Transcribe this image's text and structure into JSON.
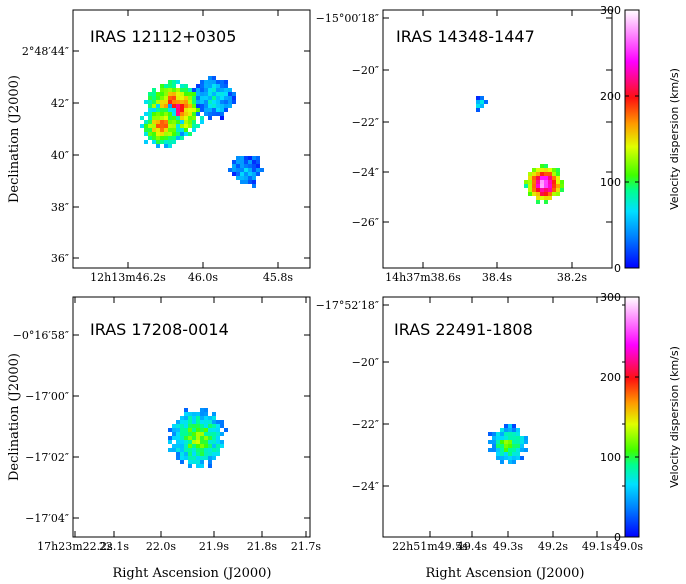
{
  "figure": {
    "colorbar_label": "Velocity dispersion (km/s)",
    "colorbar_ticks": [
      0,
      100,
      200,
      300
    ],
    "colorbar_range": [
      0,
      300
    ],
    "x_axis_label": "Right Ascension (J2000)",
    "y_axis_label": "Declination (J2000)"
  },
  "chart_data": [
    {
      "type": "heatmap",
      "title": "IRAS 12112+0305",
      "x_ticks": [
        "12h13m46.2s",
        "46.0s",
        "45.8s"
      ],
      "y_ticks": [
        "2°48′44″",
        "42″",
        "40″",
        "38″",
        "36″"
      ],
      "xlabel": "",
      "ylabel": "Declination (J2000)",
      "colorbar": false,
      "clumps": [
        {
          "ra_tick": 0.6,
          "dec": 41.8,
          "size": 7,
          "peak": 230
        },
        {
          "ra_tick": 0.4,
          "dec": 41.2,
          "size": 5,
          "peak": 190
        },
        {
          "ra_tick": 1.1,
          "dec": 42.2,
          "size": 5,
          "peak": 80
        },
        {
          "ra_tick": 1.55,
          "dec": 39.5,
          "size": 4,
          "peak": 60
        }
      ]
    },
    {
      "type": "heatmap",
      "title": "IRAS 14348-1447",
      "x_ticks": [
        "14h37m38.6s",
        "38.4s",
        "38.2s"
      ],
      "y_ticks": [
        "−15°00′18″",
        "−20″",
        "−22″",
        "−24″",
        "−26″"
      ],
      "xlabel": "",
      "ylabel": "",
      "colorbar": true,
      "clumps": [
        {
          "ra_tick": 0.75,
          "dec": -21.3,
          "size": 1.5,
          "peak": 90
        },
        {
          "ra_tick": 1.6,
          "dec": -24.5,
          "size": 4.5,
          "peak": 300
        }
      ]
    },
    {
      "type": "heatmap",
      "title": "IRAS 17208-0014",
      "x_ticks": [
        "17h23m22.2s",
        "22.1s",
        "22.0s",
        "21.9s",
        "21.8s",
        "21.7s"
      ],
      "y_ticks": [
        "−0°16′58″",
        "−17′00″",
        "−17′02″",
        "−17′04″"
      ],
      "xlabel": "Right Ascension (J2000)",
      "ylabel": "Declination (J2000)",
      "colorbar": false,
      "clumps": [
        {
          "ra_tick": 2.65,
          "dec": -61.3,
          "size": 7,
          "peak": 130
        }
      ]
    },
    {
      "type": "heatmap",
      "title": "IRAS 22491-1808",
      "x_ticks": [
        "22h51m49.5s",
        "49.4s",
        "49.3s",
        "49.2s",
        "49.1s",
        "49.0s"
      ],
      "y_ticks": [
        "−17°52′18″",
        "−20″",
        "−22″",
        "−24″"
      ],
      "xlabel": "Right Ascension (J2000)",
      "ylabel": "",
      "colorbar": true,
      "clumps": [
        {
          "ra_tick": 1.9,
          "dec": -22.5,
          "size": 4.5,
          "peak": 120
        }
      ]
    }
  ]
}
